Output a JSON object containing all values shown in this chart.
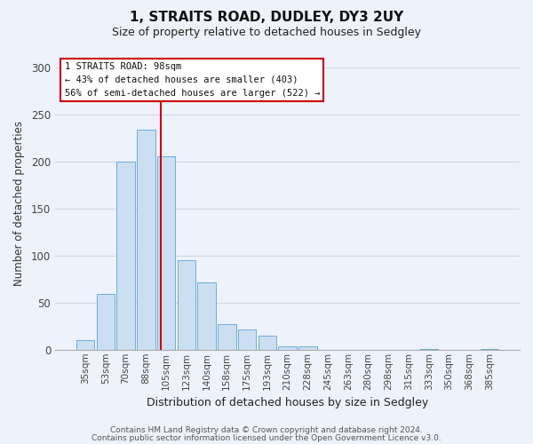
{
  "title1": "1, STRAITS ROAD, DUDLEY, DY3 2UY",
  "title2": "Size of property relative to detached houses in Sedgley",
  "xlabel": "Distribution of detached houses by size in Sedgley",
  "ylabel": "Number of detached properties",
  "bar_labels": [
    "35sqm",
    "53sqm",
    "70sqm",
    "88sqm",
    "105sqm",
    "123sqm",
    "140sqm",
    "158sqm",
    "175sqm",
    "193sqm",
    "210sqm",
    "228sqm",
    "245sqm",
    "263sqm",
    "280sqm",
    "298sqm",
    "315sqm",
    "333sqm",
    "350sqm",
    "368sqm",
    "385sqm"
  ],
  "bar_values": [
    10,
    59,
    200,
    234,
    205,
    95,
    71,
    27,
    21,
    15,
    4,
    4,
    0,
    0,
    0,
    0,
    0,
    1,
    0,
    0,
    1
  ],
  "bar_color": "#ccdff2",
  "bar_edge_color": "#6aaed6",
  "vline_x": 3.72,
  "vline_color": "#cc0000",
  "ylim": [
    0,
    310
  ],
  "yticks": [
    0,
    50,
    100,
    150,
    200,
    250,
    300
  ],
  "annotation_title": "1 STRAITS ROAD: 98sqm",
  "annotation_line1": "← 43% of detached houses are smaller (403)",
  "annotation_line2": "56% of semi-detached houses are larger (522) →",
  "annotation_box_color": "#cc0000",
  "footer1": "Contains HM Land Registry data © Crown copyright and database right 2024.",
  "footer2": "Contains public sector information licensed under the Open Government Licence v3.0.",
  "background_color": "#eef2fa",
  "grid_color": "#d0d8e8"
}
